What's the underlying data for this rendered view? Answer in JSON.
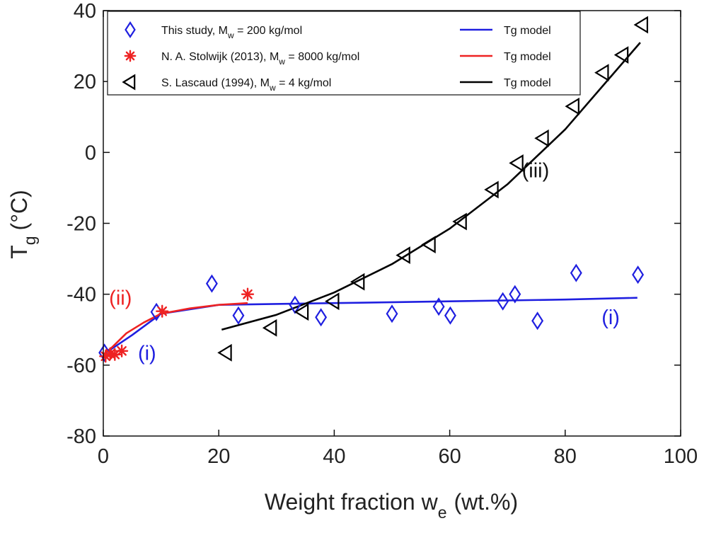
{
  "chart_data": {
    "type": "scatter",
    "title": "",
    "xlabel": "Weight fraction w",
    "xlabel_sub": "e",
    "xlabel_unit": "(wt.%)",
    "ylabel": "T",
    "ylabel_sub": "g",
    "ylabel_unit": "(°C)",
    "xlim": [
      0,
      100
    ],
    "ylim": [
      -80,
      40
    ],
    "xticks": [
      "0",
      "20",
      "40",
      "60",
      "80",
      "100"
    ],
    "yticks": [
      "-80",
      "-60",
      "-40",
      "-20",
      "0",
      "20",
      "40"
    ],
    "grid": false,
    "legend_position": "top-left",
    "legend": [
      {
        "marker": "diamond",
        "marker_color": "#1f1fe0",
        "text": "This study, M",
        "sub": "w",
        "rest": " = 200 kg/mol",
        "line_label": "Tg model",
        "line_color": "#1f1fe0"
      },
      {
        "marker": "asterisk",
        "marker_color": "#ee2222",
        "text": "N. A. Stolwijk (2013), M",
        "sub": "w",
        "rest": " = 8000 kg/mol",
        "line_label": "Tg model",
        "line_color": "#ee2222"
      },
      {
        "marker": "triangle-left",
        "marker_color": "#000000",
        "text": "S. Lascaud (1994), M",
        "sub": "w",
        "rest": " = 4 kg/mol",
        "line_label": "Tg model",
        "line_color": "#000000"
      }
    ],
    "series": [
      {
        "marker": "diamond",
        "color": "#1f1fe0",
        "x": [
          0.2,
          9.2,
          18.8,
          23.4,
          33.2,
          37.7,
          50.0,
          58.1,
          60.1,
          69.2,
          71.3,
          75.2,
          81.9,
          92.6
        ],
        "y": [
          -56.5,
          -45.0,
          -37.0,
          -46.0,
          -43.0,
          -46.5,
          -45.5,
          -43.5,
          -46.0,
          -42.0,
          -40.0,
          -47.5,
          -34.0,
          -34.5
        ]
      },
      {
        "marker": "asterisk",
        "color": "#ee2222",
        "x": [
          0.4,
          1.2,
          2.0,
          3.2,
          10.2,
          25.0
        ],
        "y": [
          -57.5,
          -56.8,
          -57.0,
          -56.0,
          -44.8,
          -40.0
        ]
      },
      {
        "marker": "triangle-left",
        "color": "#000000",
        "x": [
          21.3,
          29.1,
          34.6,
          39.9,
          44.3,
          52.2,
          56.6,
          62.0,
          67.5,
          71.8,
          76.2,
          81.5,
          86.6,
          90.0,
          93.4
        ],
        "y": [
          -56.5,
          -49.5,
          -45.0,
          -42.0,
          -36.5,
          -29.0,
          -26.0,
          -19.5,
          -10.5,
          -3.0,
          4.0,
          13.0,
          22.5,
          27.5,
          36.0
        ]
      }
    ],
    "model_lines": [
      {
        "color": "#1f1fe0",
        "x": [
          0,
          5,
          10,
          20,
          40,
          60,
          80,
          92.5
        ],
        "y": [
          -57.0,
          -51.5,
          -45.5,
          -43.0,
          -42.5,
          -42.0,
          -41.5,
          -41.0
        ]
      },
      {
        "color": "#ee2222",
        "x": [
          0,
          1.5,
          4,
          7,
          10,
          15,
          20,
          25
        ],
        "y": [
          -57.0,
          -55.0,
          -51.0,
          -48.0,
          -45.5,
          -44.0,
          -43.0,
          -42.5
        ]
      },
      {
        "color": "#000000",
        "x": [
          20.5,
          30,
          40,
          50,
          60,
          70,
          80,
          93
        ],
        "y": [
          -50.0,
          -45.8,
          -39.5,
          -31.5,
          -21.5,
          -9.0,
          6.5,
          31.0
        ]
      }
    ],
    "annotations": [
      {
        "text": "(ii)",
        "color": "#ee2222",
        "x": 1.0,
        "y": -43.0
      },
      {
        "text": "(i)",
        "color": "#1f1fe0",
        "x": 6.0,
        "y": -58.5
      },
      {
        "text": "(i)",
        "color": "#1f1fe0",
        "x": 86.3,
        "y": -48.5
      },
      {
        "text": "(iii)",
        "color": "#111111",
        "x": 72.5,
        "y": -7.0
      }
    ]
  }
}
